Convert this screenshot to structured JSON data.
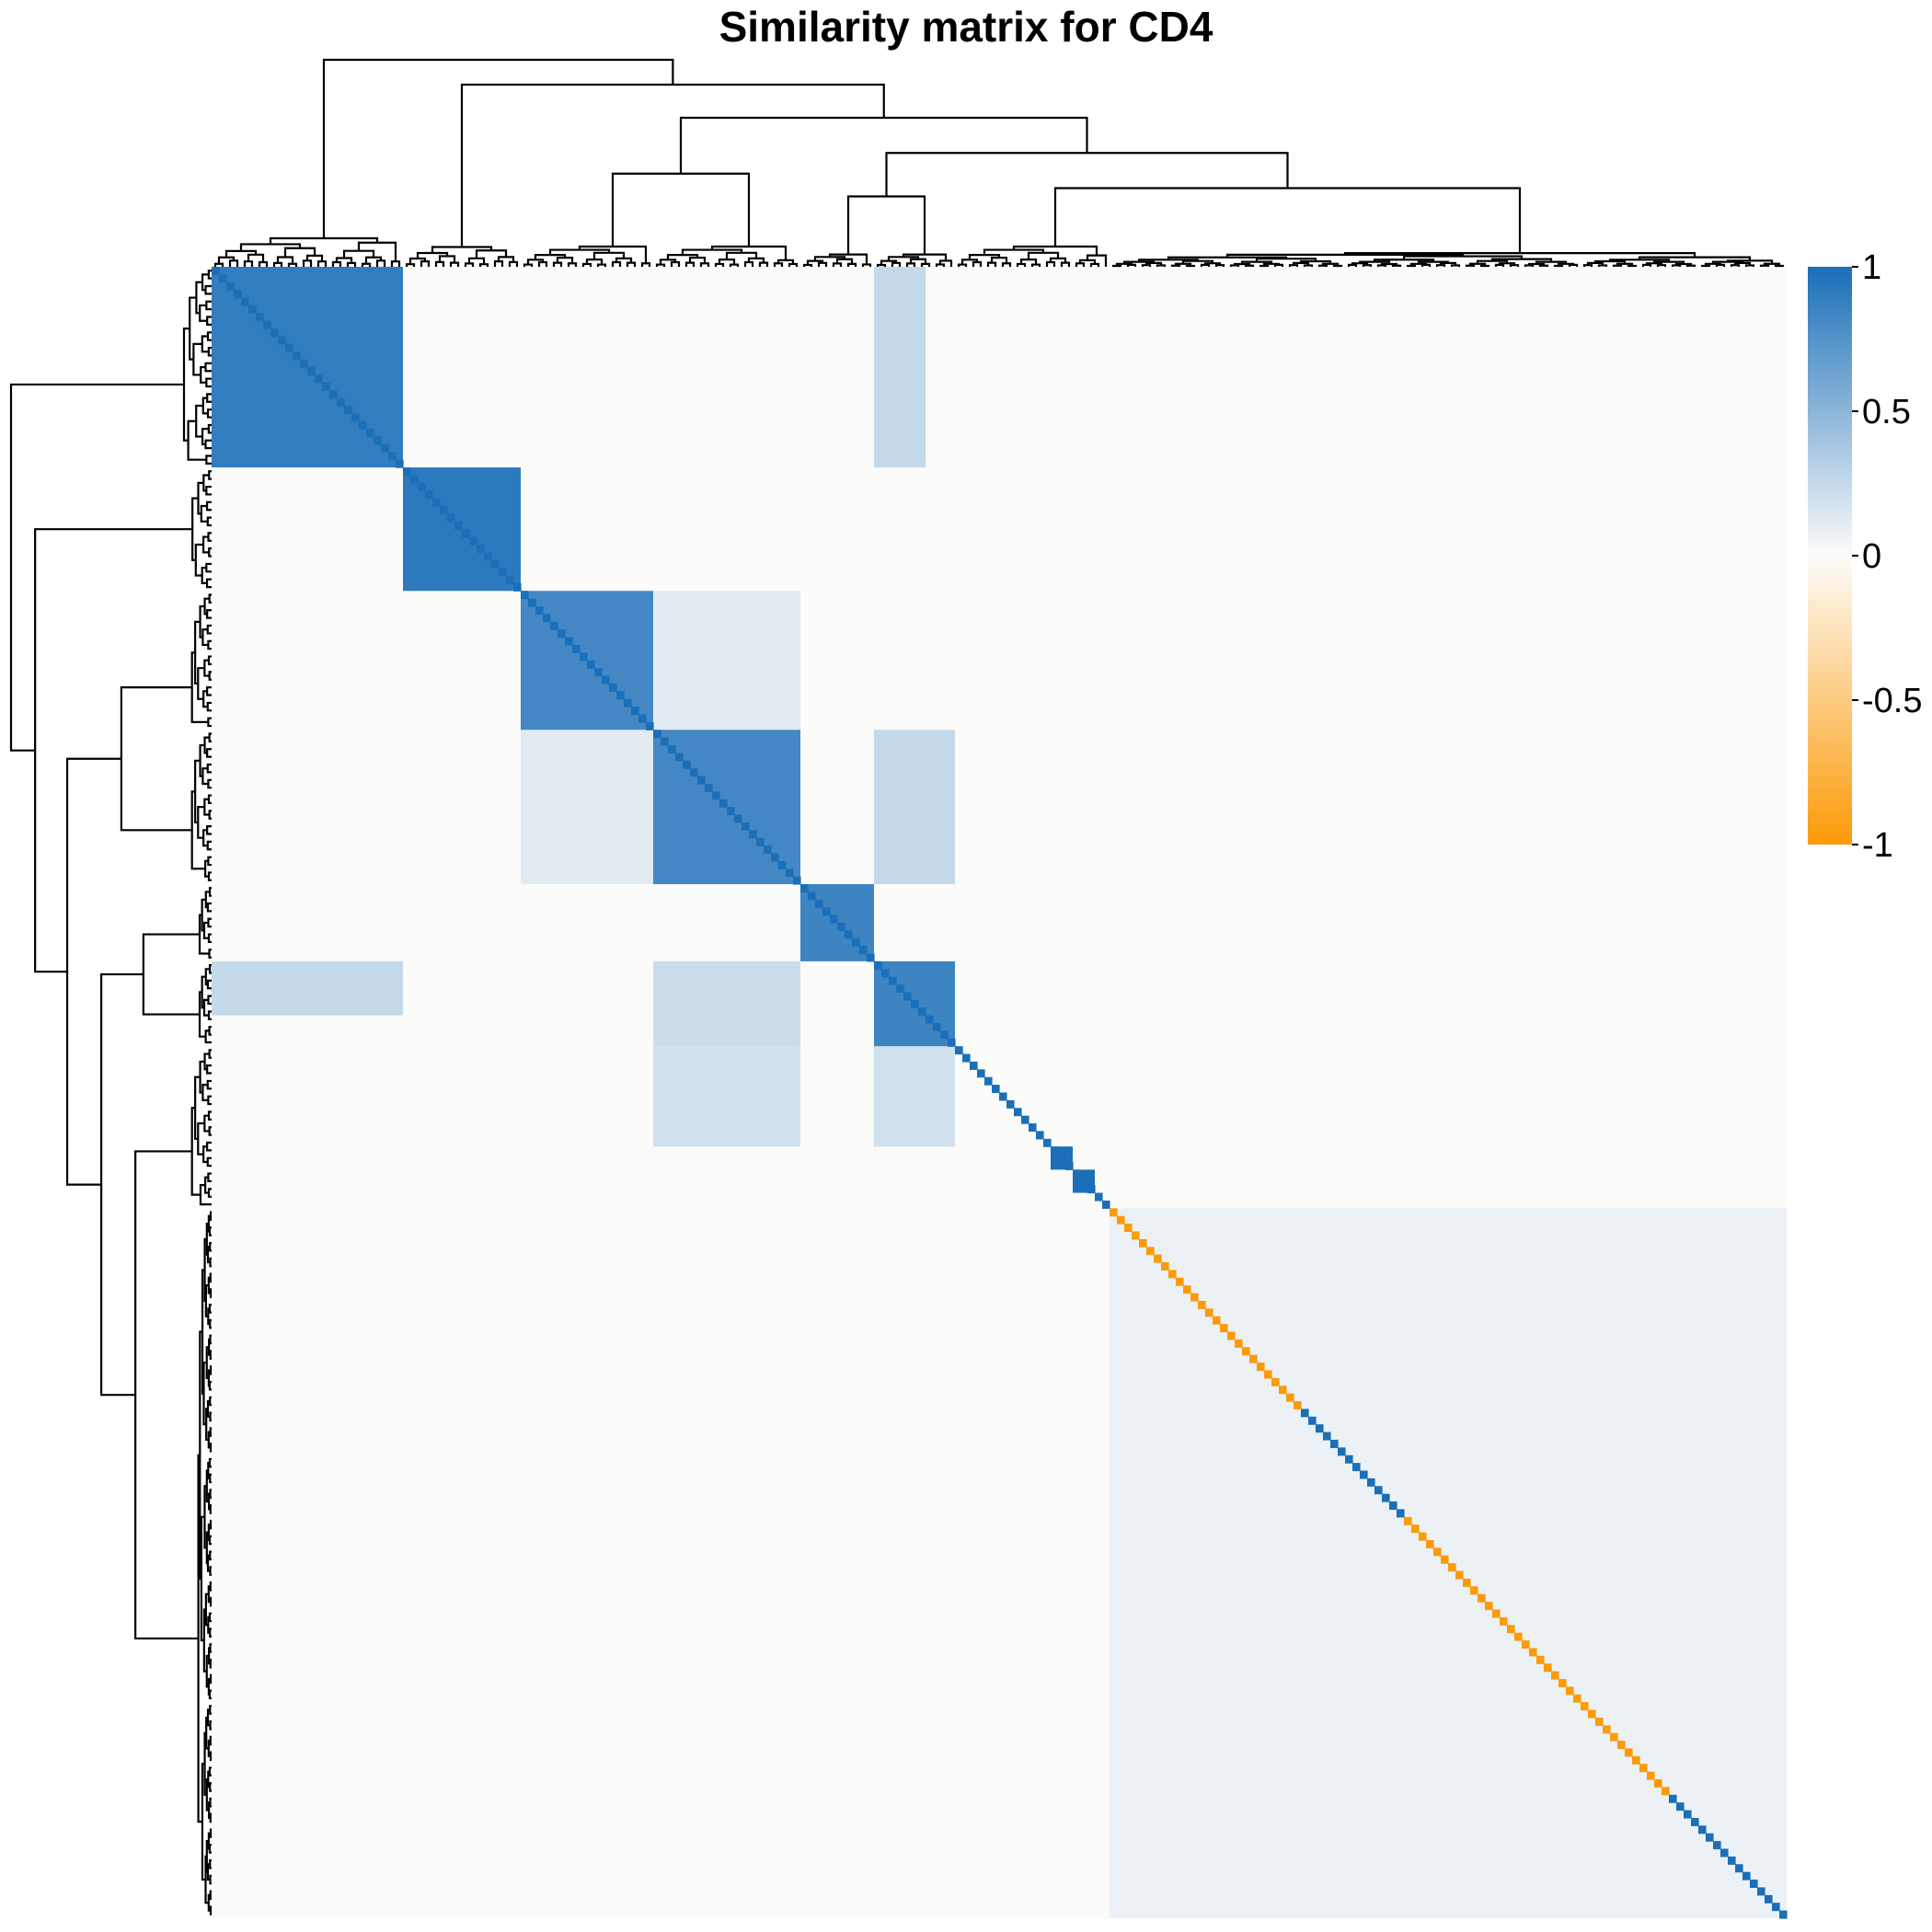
{
  "chart_data": {
    "type": "heatmap",
    "title": "Similarity matrix for CD4",
    "n": 214,
    "value_range": [
      -1,
      1
    ],
    "colorbar": {
      "ticks": [
        1,
        0.5,
        0,
        -0.5,
        -1
      ],
      "tick_labels": [
        "1",
        "0.5",
        "0",
        "-0.5",
        "-1"
      ],
      "colors": {
        "high": "#1a6fb8",
        "mid": "#fdfcfa",
        "low": "#fc9a07"
      }
    },
    "dendrograms": {
      "rows": true,
      "columns": true
    },
    "blocks": [
      {
        "start": 0,
        "end": 26,
        "value": 0.9
      },
      {
        "start": 26,
        "end": 42,
        "value": 0.92
      },
      {
        "start": 42,
        "end": 60,
        "value": 0.82
      },
      {
        "start": 60,
        "end": 80,
        "value": 0.82
      },
      {
        "start": 80,
        "end": 90,
        "value": 0.85
      },
      {
        "start": 90,
        "end": 101,
        "value": 0.85
      },
      {
        "start": 114,
        "end": 117,
        "value": 1.0
      },
      {
        "start": 117,
        "end": 120,
        "value": 1.0
      }
    ],
    "cross_blocks": [
      {
        "rows": [
          0,
          26
        ],
        "cols": [
          90,
          97
        ],
        "value": 0.25
      },
      {
        "rows": [
          90,
          97
        ],
        "cols": [
          0,
          26
        ],
        "value": 0.25
      },
      {
        "rows": [
          42,
          60
        ],
        "cols": [
          60,
          80
        ],
        "value": 0.12
      },
      {
        "rows": [
          60,
          80
        ],
        "cols": [
          42,
          60
        ],
        "value": 0.12
      },
      {
        "rows": [
          60,
          80
        ],
        "cols": [
          90,
          101
        ],
        "value": 0.25
      },
      {
        "rows": [
          90,
          101
        ],
        "cols": [
          60,
          80
        ],
        "value": 0.22
      },
      {
        "rows": [
          101,
          114
        ],
        "cols": [
          60,
          80
        ],
        "value": 0.2
      },
      {
        "rows": [
          101,
          114
        ],
        "cols": [
          90,
          101
        ],
        "value": 0.2
      },
      {
        "rows": [
          122,
          214
        ],
        "cols": [
          122,
          214
        ],
        "value": 0.08
      }
    ],
    "diagonal": {
      "blue_ranges": [
        [
          0,
          122
        ],
        [
          148,
          162
        ],
        [
          198,
          214
        ]
      ],
      "orange_ranges": [
        [
          122,
          148
        ],
        [
          162,
          198
        ]
      ],
      "blue_value": 1,
      "orange_value": -1
    }
  }
}
